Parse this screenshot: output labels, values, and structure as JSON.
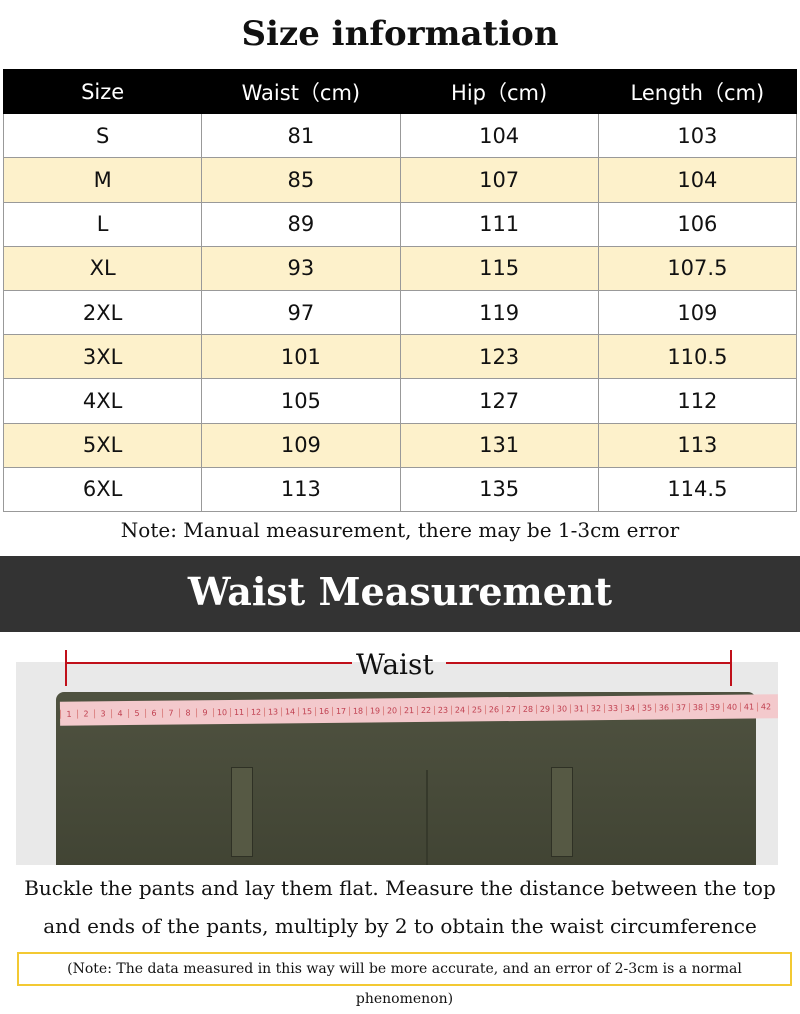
{
  "title": "Size information",
  "table": {
    "headers": [
      "Size",
      "Waist（cm)",
      "Hip（cm)",
      "Length（cm)"
    ],
    "rows": [
      [
        "S",
        "81",
        "104",
        "103"
      ],
      [
        "M",
        "85",
        "107",
        "104"
      ],
      [
        "L",
        "89",
        "111",
        "106"
      ],
      [
        "XL",
        "93",
        "115",
        "107.5"
      ],
      [
        "2XL",
        "97",
        "119",
        "109"
      ],
      [
        "3XL",
        "101",
        "123",
        "110.5"
      ],
      [
        "4XL",
        "105",
        "127",
        "112"
      ],
      [
        "5XL",
        "109",
        "131",
        "113"
      ],
      [
        "6XL",
        "113",
        "135",
        "114.5"
      ]
    ],
    "alt_row_color": "#fdf1cb"
  },
  "note1": "Note: Manual measurement, there may be 1-3cm error",
  "banner": "Waist Measurement",
  "photo": {
    "label": "Waist",
    "line_color": "#c0101a"
  },
  "instructions": [
    "Buckle the pants and lay them flat. Measure the distance between the top",
    "and ends of the pants, multiply by 2 to obtain the waist circumference"
  ],
  "note2": "(Note: The data measured in this way will be more accurate, and an error of 2-3cm is a normal phenomenon)"
}
